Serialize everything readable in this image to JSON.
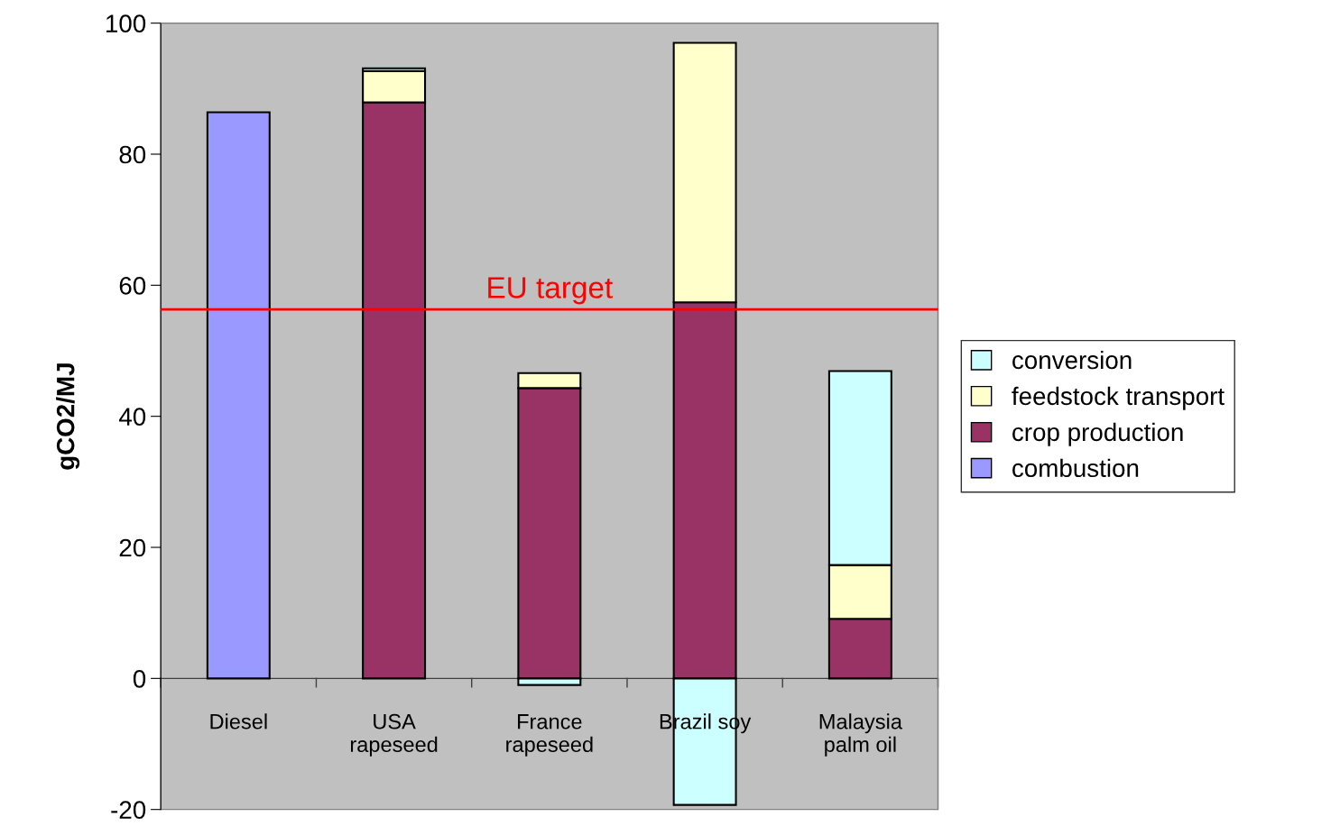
{
  "chart_data": {
    "type": "bar",
    "stacked": true,
    "ylabel": "gCO2/MJ",
    "categories": [
      "Diesel",
      "USA\nrapeseed",
      "France\nrapeseed",
      "Brazil soy",
      "Malaysia\npalm oil"
    ],
    "series": [
      {
        "name": "combustion",
        "color": "#9999ff",
        "values": [
          86.4,
          null,
          null,
          null,
          null
        ]
      },
      {
        "name": "crop production",
        "color": "#993366",
        "values": [
          null,
          87.9,
          44.3,
          57.4,
          9.1
        ]
      },
      {
        "name": "feedstock transport",
        "color": "#ffffcc",
        "values": [
          null,
          4.8,
          2.3,
          39.6,
          8.2
        ]
      },
      {
        "name": "conversion",
        "color": "#ccffff",
        "values": [
          null,
          0.4,
          -1.0,
          -19.3,
          29.6
        ]
      }
    ],
    "ylim": [
      -20,
      100
    ],
    "yticks": [
      -20,
      0,
      20,
      40,
      60,
      80,
      100
    ],
    "grid": false,
    "legend": "right",
    "ref_lines": [
      {
        "axis": "y",
        "value": 56.3,
        "label": "EU target",
        "color": "#ff0000"
      }
    ]
  }
}
